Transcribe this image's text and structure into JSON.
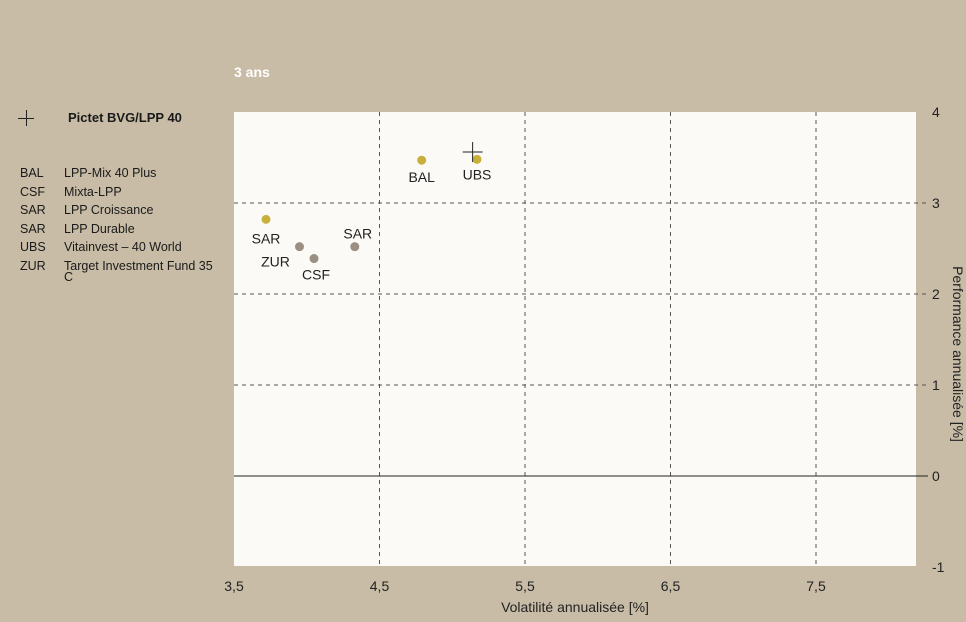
{
  "title": "3 ans",
  "legend": {
    "benchmark": {
      "label": "Pictet BVG/LPP 40"
    },
    "items": [
      {
        "code": "BAL",
        "name": "LPP-Mix 40 Plus"
      },
      {
        "code": "CSF",
        "name": "Mixta-LPP"
      },
      {
        "code": "SAR",
        "name": "LPP Croissance"
      },
      {
        "code": "SAR",
        "name": "LPP Durable"
      },
      {
        "code": "UBS",
        "name": "Vitainvest – 40 World"
      },
      {
        "code": "ZUR",
        "name": "Target Investment Fund 35 C"
      }
    ]
  },
  "chart_data": {
    "type": "scatter",
    "title": "3 ans",
    "xlabel": "Volatilité annualisée [%]",
    "ylabel": "Performance annualisée [%]",
    "xlim": [
      3.5,
      8.1
    ],
    "ylim": [
      -1,
      4
    ],
    "xticks": [
      "3,5",
      "4,5",
      "5,5",
      "6,5",
      "7,5"
    ],
    "xtick_values": [
      3.5,
      4.5,
      5.5,
      6.5,
      7.5
    ],
    "yticks": [
      "-1",
      "0",
      "1",
      "2",
      "3",
      "4"
    ],
    "ytick_values": [
      -1,
      0,
      1,
      2,
      3,
      4
    ],
    "grid": "dashed",
    "points": [
      {
        "label": "BAL",
        "x": 4.79,
        "y": 3.47,
        "color": "#c9b03c"
      },
      {
        "label": "UBS",
        "x": 5.17,
        "y": 3.48,
        "color": "#c9b03c"
      },
      {
        "label": "SAR",
        "x": 3.72,
        "y": 2.82,
        "color": "#c9b03c"
      },
      {
        "label": "SAR",
        "x": 4.33,
        "y": 2.52,
        "color": "#9a8f80"
      },
      {
        "label": "ZUR",
        "x": 3.95,
        "y": 2.52,
        "color": "#9a8f80"
      },
      {
        "label": "CSF",
        "x": 4.05,
        "y": 2.39,
        "color": "#9a8f80"
      }
    ],
    "benchmark": {
      "label": "Pictet BVG/LPP 40",
      "x": 5.14,
      "y": 3.56
    }
  },
  "colors": {
    "background": "#c8bca6",
    "plot_area": "#fbfaf7",
    "accent": "#c9b03c",
    "secondary": "#9a8f80"
  }
}
